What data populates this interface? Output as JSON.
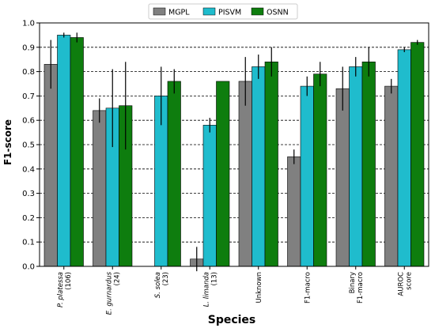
{
  "chart_data": {
    "type": "bar",
    "ylabel": "F1-score",
    "xlabel": "Species",
    "ylim": [
      0.0,
      1.0
    ],
    "yticks": [
      "0.0",
      "0.1",
      "0.2",
      "0.3",
      "0.4",
      "0.5",
      "0.6",
      "0.7",
      "0.8",
      "0.9",
      "1.0"
    ],
    "grid": "horizontal dashed",
    "legend_position": "top-center",
    "categories": [
      {
        "lines": [
          "P. platessa",
          "(106)"
        ],
        "italic_first": true
      },
      {
        "lines": [
          "E. gurnardus",
          "(24)"
        ],
        "italic_first": true
      },
      {
        "lines": [
          "S. solea",
          "(23)"
        ],
        "italic_first": true
      },
      {
        "lines": [
          "L. limanda",
          "(13)"
        ],
        "italic_first": true
      },
      {
        "lines": [
          "Unknown"
        ],
        "italic_first": false
      },
      {
        "lines": [
          "F1-macro"
        ],
        "italic_first": false
      },
      {
        "lines": [
          "Binary",
          "F1-macro"
        ],
        "italic_first": false
      },
      {
        "lines": [
          "AUROC",
          "score"
        ],
        "italic_first": false
      }
    ],
    "series": [
      {
        "name": "MGPL",
        "color": "#808080",
        "values": [
          0.83,
          0.64,
          null,
          0.03,
          0.76,
          0.45,
          0.73,
          0.74
        ],
        "errors": [
          0.1,
          0.05,
          null,
          0.05,
          0.1,
          0.03,
          0.09,
          0.03
        ]
      },
      {
        "name": "PISVM",
        "color": "#1fbccd",
        "values": [
          0.95,
          0.65,
          0.7,
          0.58,
          0.82,
          0.74,
          0.82,
          0.89
        ],
        "errors": [
          0.01,
          0.16,
          0.12,
          0.03,
          0.05,
          0.04,
          0.04,
          0.01
        ]
      },
      {
        "name": "OSNN",
        "color": "#0e7d0e",
        "values": [
          0.94,
          0.66,
          0.76,
          0.76,
          0.84,
          0.79,
          0.84,
          0.92
        ],
        "errors": [
          0.02,
          0.18,
          0.05,
          null,
          0.06,
          0.05,
          0.06,
          0.01
        ]
      }
    ]
  }
}
